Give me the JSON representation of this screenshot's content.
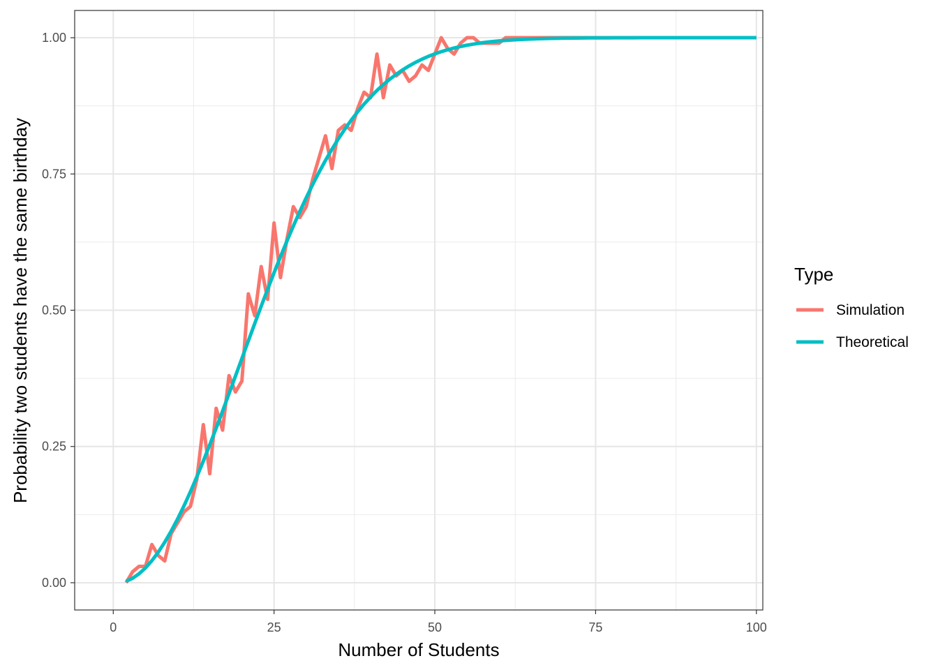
{
  "chart_data": {
    "type": "line",
    "xlabel": "Number of Students",
    "ylabel": "Probability two students have the same birthday",
    "xlim": [
      -6,
      101
    ],
    "ylim": [
      -0.05,
      1.05
    ],
    "x_ticks": [
      0,
      25,
      50,
      75,
      100
    ],
    "x_tick_labels": [
      "0",
      "25",
      "50",
      "75",
      "100"
    ],
    "y_ticks": [
      0,
      0.25,
      0.5,
      0.75,
      1
    ],
    "y_tick_labels": [
      "0.00",
      "0.25",
      "0.50",
      "0.75",
      "1.00"
    ],
    "grid": true,
    "legend": {
      "title": "Type",
      "position": "right"
    },
    "series": [
      {
        "name": "Simulation",
        "color": "#F8766D",
        "x": [
          2,
          3,
          4,
          5,
          6,
          7,
          8,
          9,
          10,
          11,
          12,
          13,
          14,
          15,
          16,
          17,
          18,
          19,
          20,
          21,
          22,
          23,
          24,
          25,
          26,
          27,
          28,
          29,
          30,
          31,
          32,
          33,
          34,
          35,
          36,
          37,
          38,
          39,
          40,
          41,
          42,
          43,
          44,
          45,
          46,
          47,
          48,
          49,
          50,
          51,
          52,
          53,
          54,
          55,
          56,
          57,
          58,
          59,
          60,
          61,
          62,
          63,
          64,
          65,
          66,
          67,
          68,
          69,
          70,
          71,
          72,
          73,
          74,
          75,
          76,
          77,
          78,
          79,
          80,
          81,
          82,
          83,
          84,
          85,
          86,
          87,
          88,
          89,
          90,
          91,
          92,
          93,
          94,
          95,
          96,
          97,
          98,
          99,
          100
        ],
        "values": [
          0.0,
          0.02,
          0.03,
          0.03,
          0.07,
          0.05,
          0.04,
          0.09,
          0.11,
          0.13,
          0.14,
          0.19,
          0.29,
          0.2,
          0.32,
          0.28,
          0.38,
          0.35,
          0.37,
          0.53,
          0.49,
          0.58,
          0.52,
          0.66,
          0.56,
          0.63,
          0.69,
          0.67,
          0.69,
          0.74,
          0.78,
          0.82,
          0.76,
          0.83,
          0.84,
          0.83,
          0.87,
          0.9,
          0.89,
          0.97,
          0.89,
          0.95,
          0.93,
          0.94,
          0.92,
          0.93,
          0.95,
          0.94,
          0.97,
          1.0,
          0.98,
          0.97,
          0.99,
          1.0,
          1.0,
          0.99,
          0.99,
          0.99,
          0.99,
          1.0,
          1.0,
          1.0,
          1.0,
          1.0,
          1.0,
          1.0,
          1.0,
          1.0,
          1.0,
          1.0,
          1.0,
          1.0,
          1.0,
          1.0,
          1.0,
          1.0,
          1.0,
          1.0,
          1.0,
          1.0,
          1.0,
          1.0,
          1.0,
          1.0,
          1.0,
          1.0,
          1.0,
          1.0,
          1.0,
          1.0,
          1.0,
          1.0,
          1.0,
          1.0,
          1.0,
          1.0,
          1.0,
          1.0,
          1.0
        ]
      },
      {
        "name": "Theoretical",
        "color": "#00BFC4",
        "x": [
          2,
          3,
          4,
          5,
          6,
          7,
          8,
          9,
          10,
          11,
          12,
          13,
          14,
          15,
          16,
          17,
          18,
          19,
          20,
          21,
          22,
          23,
          24,
          25,
          26,
          27,
          28,
          29,
          30,
          31,
          32,
          33,
          34,
          35,
          36,
          37,
          38,
          39,
          40,
          41,
          42,
          43,
          44,
          45,
          46,
          47,
          48,
          49,
          50,
          51,
          52,
          53,
          54,
          55,
          56,
          57,
          58,
          59,
          60,
          61,
          62,
          63,
          64,
          65,
          66,
          67,
          68,
          69,
          70,
          71,
          72,
          73,
          74,
          75,
          76,
          77,
          78,
          79,
          80,
          81,
          82,
          83,
          84,
          85,
          86,
          87,
          88,
          89,
          90,
          91,
          92,
          93,
          94,
          95,
          96,
          97,
          98,
          99,
          100
        ],
        "values": [
          0.0027,
          0.0082,
          0.0164,
          0.0271,
          0.0405,
          0.0562,
          0.0743,
          0.0946,
          0.1169,
          0.1411,
          0.167,
          0.1944,
          0.2231,
          0.2529,
          0.2836,
          0.315,
          0.3469,
          0.3791,
          0.4114,
          0.4437,
          0.4757,
          0.5073,
          0.5383,
          0.5687,
          0.5982,
          0.6269,
          0.6545,
          0.681,
          0.7063,
          0.7305,
          0.7533,
          0.775,
          0.7953,
          0.8144,
          0.8322,
          0.8487,
          0.8641,
          0.8782,
          0.8912,
          0.9032,
          0.914,
          0.9239,
          0.9329,
          0.941,
          0.9483,
          0.9548,
          0.9606,
          0.9658,
          0.9704,
          0.9744,
          0.978,
          0.9811,
          0.9839,
          0.9863,
          0.9883,
          0.9901,
          0.9917,
          0.993,
          0.9941,
          0.9951,
          0.9959,
          0.9966,
          0.9972,
          0.9977,
          0.9981,
          0.9984,
          0.9987,
          0.999,
          0.9992,
          0.9993,
          0.9995,
          0.9996,
          0.9997,
          0.9997,
          0.9998,
          0.9998,
          0.9999,
          0.9999,
          0.9999,
          0.9999,
          1.0,
          1.0,
          1.0,
          1.0,
          1.0,
          1.0,
          1.0,
          1.0,
          1.0,
          1.0,
          1.0,
          1.0,
          1.0,
          1.0,
          1.0,
          1.0,
          1.0,
          1.0,
          1.0
        ]
      }
    ]
  }
}
